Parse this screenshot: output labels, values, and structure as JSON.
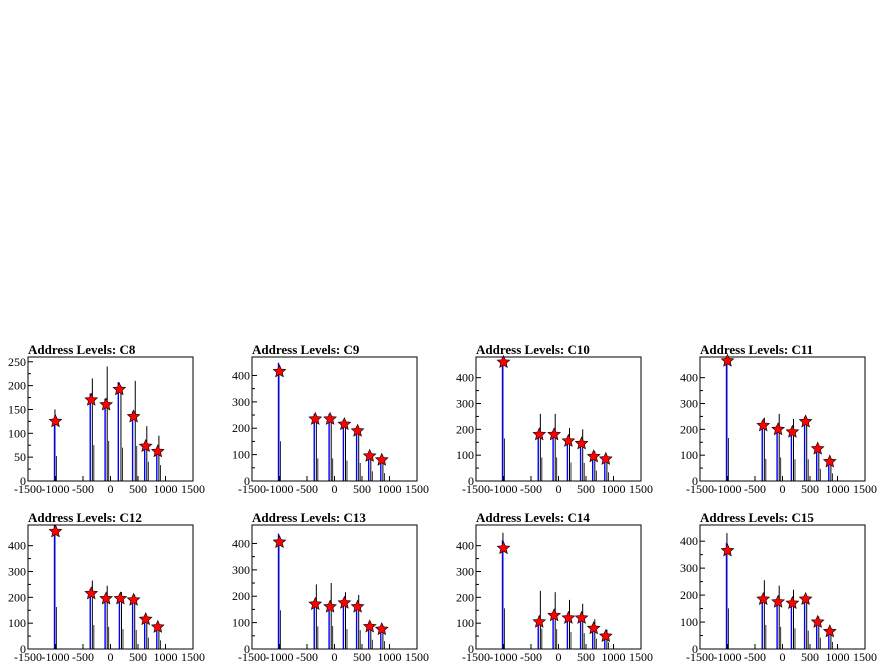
{
  "page": {
    "background": "#ffffff"
  },
  "colors": {
    "marker": "#ff0000",
    "histogram_blue": "#0000ff",
    "histogram_black": "#000000",
    "frame": "#000000"
  },
  "chart_data": [
    {
      "type": "bar",
      "title": "Address Levels: C8",
      "xlim": [
        -1500,
        1500
      ],
      "ylim": [
        0,
        260
      ],
      "x_ticks": [
        -1500,
        -1000,
        -500,
        0,
        500,
        1000,
        1500
      ],
      "x_tick_labels": [
        "-1500",
        "-1000",
        "-500",
        "0",
        "500",
        "1000",
        "1500"
      ],
      "y_ticks": [
        0,
        50,
        100,
        150,
        200,
        250
      ],
      "peaks": [
        {
          "x": -1000,
          "y": 125
        },
        {
          "x": -350,
          "y": 170
        },
        {
          "x": -80,
          "y": 160
        },
        {
          "x": 160,
          "y": 192
        },
        {
          "x": 420,
          "y": 135
        },
        {
          "x": 640,
          "y": 73
        },
        {
          "x": 860,
          "y": 62
        }
      ],
      "black_spikes": [
        {
          "x": -1010,
          "y": 150
        },
        {
          "x": -330,
          "y": 215
        },
        {
          "x": -60,
          "y": 240
        },
        {
          "x": 190,
          "y": 200
        },
        {
          "x": 450,
          "y": 210
        },
        {
          "x": 660,
          "y": 115
        },
        {
          "x": 880,
          "y": 95
        }
      ]
    },
    {
      "type": "bar",
      "title": "Address Levels: C9",
      "xlim": [
        -1500,
        1500
      ],
      "ylim": [
        0,
        470
      ],
      "x_ticks": [
        -1500,
        -1000,
        -500,
        0,
        500,
        1000,
        1500
      ],
      "x_tick_labels": [
        "-1500",
        "-1000",
        "-500",
        "0",
        "500",
        "1000",
        "1500"
      ],
      "y_ticks": [
        0,
        100,
        200,
        300,
        400
      ],
      "peaks": [
        {
          "x": -1000,
          "y": 415
        },
        {
          "x": -350,
          "y": 235
        },
        {
          "x": -80,
          "y": 235
        },
        {
          "x": 180,
          "y": 215
        },
        {
          "x": 420,
          "y": 190
        },
        {
          "x": 640,
          "y": 95
        },
        {
          "x": 860,
          "y": 80
        }
      ],
      "black_spikes": [
        {
          "x": -1010,
          "y": 430
        },
        {
          "x": -330,
          "y": 245
        },
        {
          "x": -60,
          "y": 245
        },
        {
          "x": 200,
          "y": 220
        },
        {
          "x": 440,
          "y": 195
        },
        {
          "x": 660,
          "y": 105
        },
        {
          "x": 880,
          "y": 85
        }
      ]
    },
    {
      "type": "bar",
      "title": "Address Levels: C10",
      "xlim": [
        -1500,
        1500
      ],
      "ylim": [
        0,
        480
      ],
      "x_ticks": [
        -1500,
        -1000,
        -500,
        0,
        500,
        1000,
        1500
      ],
      "x_tick_labels": [
        "-1500",
        "-1000",
        "-500",
        "0",
        "500",
        "1000",
        "1500"
      ],
      "y_ticks": [
        0,
        100,
        200,
        300,
        400
      ],
      "peaks": [
        {
          "x": -1000,
          "y": 460
        },
        {
          "x": -350,
          "y": 180
        },
        {
          "x": -80,
          "y": 180
        },
        {
          "x": 180,
          "y": 155
        },
        {
          "x": 420,
          "y": 145
        },
        {
          "x": 640,
          "y": 95
        },
        {
          "x": 860,
          "y": 85
        }
      ],
      "black_spikes": [
        {
          "x": -1010,
          "y": 470
        },
        {
          "x": -330,
          "y": 260
        },
        {
          "x": -60,
          "y": 260
        },
        {
          "x": 200,
          "y": 205
        },
        {
          "x": 440,
          "y": 200
        },
        {
          "x": 660,
          "y": 115
        },
        {
          "x": 880,
          "y": 95
        }
      ]
    },
    {
      "type": "bar",
      "title": "Address Levels: C11",
      "xlim": [
        -1500,
        1500
      ],
      "ylim": [
        0,
        480
      ],
      "x_ticks": [
        -1500,
        -1000,
        -500,
        0,
        500,
        1000,
        1500
      ],
      "x_tick_labels": [
        "-1500",
        "-1000",
        "-500",
        "0",
        "500",
        "1000",
        "1500"
      ],
      "y_ticks": [
        0,
        100,
        200,
        300,
        400
      ],
      "peaks": [
        {
          "x": -1000,
          "y": 465
        },
        {
          "x": -350,
          "y": 215
        },
        {
          "x": -80,
          "y": 200
        },
        {
          "x": 180,
          "y": 190
        },
        {
          "x": 420,
          "y": 230
        },
        {
          "x": 640,
          "y": 125
        },
        {
          "x": 860,
          "y": 75
        }
      ],
      "black_spikes": [
        {
          "x": -1010,
          "y": 475
        },
        {
          "x": -330,
          "y": 245
        },
        {
          "x": -60,
          "y": 260
        },
        {
          "x": 200,
          "y": 240
        },
        {
          "x": 440,
          "y": 240
        },
        {
          "x": 660,
          "y": 135
        },
        {
          "x": 880,
          "y": 85
        }
      ]
    },
    {
      "type": "bar",
      "title": "Address Levels: C12",
      "xlim": [
        -1500,
        1500
      ],
      "ylim": [
        0,
        480
      ],
      "x_ticks": [
        -1500,
        -1000,
        -500,
        0,
        500,
        1000,
        1500
      ],
      "x_tick_labels": [
        "-1500",
        "-1000",
        "-500",
        "0",
        "500",
        "1000",
        "1500"
      ],
      "y_ticks": [
        0,
        100,
        200,
        300,
        400
      ],
      "peaks": [
        {
          "x": -1000,
          "y": 455
        },
        {
          "x": -350,
          "y": 215
        },
        {
          "x": -80,
          "y": 195
        },
        {
          "x": 180,
          "y": 195
        },
        {
          "x": 420,
          "y": 190
        },
        {
          "x": 640,
          "y": 115
        },
        {
          "x": 860,
          "y": 85
        }
      ],
      "black_spikes": [
        {
          "x": -1010,
          "y": 465
        },
        {
          "x": -330,
          "y": 265
        },
        {
          "x": -60,
          "y": 245
        },
        {
          "x": 200,
          "y": 220
        },
        {
          "x": 440,
          "y": 210
        },
        {
          "x": 660,
          "y": 125
        },
        {
          "x": 880,
          "y": 95
        }
      ]
    },
    {
      "type": "bar",
      "title": "Address Levels: C13",
      "xlim": [
        -1500,
        1500
      ],
      "ylim": [
        0,
        470
      ],
      "x_ticks": [
        -1500,
        -1000,
        -500,
        0,
        500,
        1000,
        1500
      ],
      "x_tick_labels": [
        "-1500",
        "-1000",
        "-500",
        "0",
        "500",
        "1000",
        "1500"
      ],
      "y_ticks": [
        0,
        100,
        200,
        300,
        400
      ],
      "peaks": [
        {
          "x": -1000,
          "y": 405
        },
        {
          "x": -350,
          "y": 170
        },
        {
          "x": -80,
          "y": 160
        },
        {
          "x": 180,
          "y": 175
        },
        {
          "x": 420,
          "y": 160
        },
        {
          "x": 640,
          "y": 85
        },
        {
          "x": 860,
          "y": 75
        }
      ],
      "black_spikes": [
        {
          "x": -1010,
          "y": 420
        },
        {
          "x": -330,
          "y": 245
        },
        {
          "x": -60,
          "y": 250
        },
        {
          "x": 200,
          "y": 215
        },
        {
          "x": 440,
          "y": 205
        },
        {
          "x": 660,
          "y": 100
        },
        {
          "x": 880,
          "y": 85
        }
      ]
    },
    {
      "type": "bar",
      "title": "Address Levels: C14",
      "xlim": [
        -1500,
        1500
      ],
      "ylim": [
        0,
        480
      ],
      "x_ticks": [
        -1500,
        -1000,
        -500,
        0,
        500,
        1000,
        1500
      ],
      "x_tick_labels": [
        "-1500",
        "-1000",
        "-500",
        "0",
        "500",
        "1000",
        "1500"
      ],
      "y_ticks": [
        0,
        100,
        200,
        300,
        400
      ],
      "peaks": [
        {
          "x": -1000,
          "y": 390
        },
        {
          "x": -350,
          "y": 105
        },
        {
          "x": -80,
          "y": 130
        },
        {
          "x": 180,
          "y": 120
        },
        {
          "x": 420,
          "y": 120
        },
        {
          "x": 640,
          "y": 80
        },
        {
          "x": 860,
          "y": 50
        }
      ],
      "black_spikes": [
        {
          "x": -1010,
          "y": 450
        },
        {
          "x": -330,
          "y": 225
        },
        {
          "x": -60,
          "y": 220
        },
        {
          "x": 200,
          "y": 190
        },
        {
          "x": 440,
          "y": 175
        },
        {
          "x": 660,
          "y": 115
        },
        {
          "x": 880,
          "y": 75
        }
      ]
    },
    {
      "type": "bar",
      "title": "Address Levels: C15",
      "xlim": [
        -1500,
        1500
      ],
      "ylim": [
        0,
        460
      ],
      "x_ticks": [
        -1500,
        -1000,
        -500,
        0,
        500,
        1000,
        1500
      ],
      "x_tick_labels": [
        "-1500",
        "-1000",
        "-500",
        "0",
        "500",
        "1000",
        "1500"
      ],
      "y_ticks": [
        0,
        100,
        200,
        300,
        400
      ],
      "peaks": [
        {
          "x": -1000,
          "y": 365
        },
        {
          "x": -350,
          "y": 185
        },
        {
          "x": -80,
          "y": 175
        },
        {
          "x": 180,
          "y": 170
        },
        {
          "x": 420,
          "y": 185
        },
        {
          "x": 640,
          "y": 100
        },
        {
          "x": 860,
          "y": 65
        }
      ],
      "black_spikes": [
        {
          "x": -1010,
          "y": 430
        },
        {
          "x": -330,
          "y": 255
        },
        {
          "x": -60,
          "y": 235
        },
        {
          "x": 200,
          "y": 220
        },
        {
          "x": 440,
          "y": 195
        },
        {
          "x": 660,
          "y": 120
        },
        {
          "x": 880,
          "y": 75
        }
      ]
    }
  ]
}
